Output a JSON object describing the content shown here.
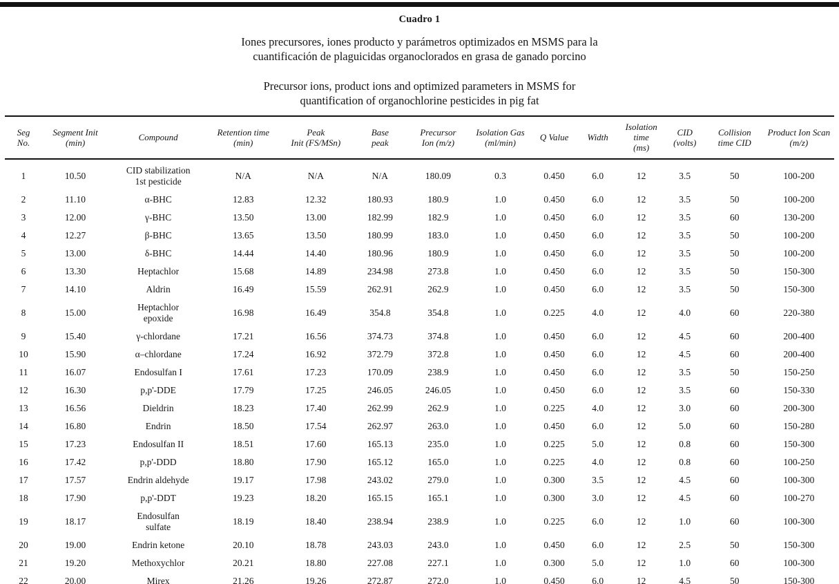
{
  "title": {
    "label": "Cuadro 1",
    "subtitle_es": "Iones precursores, iones producto y parámetros optimizados en MSMS para la\ncuantificación de plaguicidas organoclorados en grasa de ganado porcino",
    "subtitle_en": "Precursor ions, product ions and optimized parameters in MSMS for\nquantification of organochlorine pesticides in pig fat"
  },
  "chart_data": {
    "type": "table",
    "columns": [
      "Seg\nNo.",
      "Segment Init\n(min)",
      "Compound",
      "Retention time\n(min)",
      "Peak\nInit (FS/MSn)",
      "Base\npeak",
      "Precursor\nIon (m/z)",
      "Isolation Gas\n(ml/min)",
      "Q Value",
      "Width",
      "Isolation\ntime\n(ms)",
      "CID\n(volts)",
      "Collision\ntime  CID",
      "Product Ion Scan\n(m/z)"
    ],
    "rows": [
      [
        "1",
        "10.50",
        "CID stabilization\n1st pesticide",
        "N/A",
        "N/A",
        "N/A",
        "180.09",
        "0.3",
        "0.450",
        "6.0",
        "12",
        "3.5",
        "50",
        "100-200"
      ],
      [
        "2",
        "11.10",
        "α-BHC",
        "12.83",
        "12.32",
        "180.93",
        "180.9",
        "1.0",
        "0.450",
        "6.0",
        "12",
        "3.5",
        "50",
        "100-200"
      ],
      [
        "3",
        "12.00",
        "γ-BHC",
        "13.50",
        "13.00",
        "182.99",
        "182.9",
        "1.0",
        "0.450",
        "6.0",
        "12",
        "3.5",
        "60",
        "130-200"
      ],
      [
        "4",
        "12.27",
        "β-BHC",
        "13.65",
        "13.50",
        "180.99",
        "183.0",
        "1.0",
        "0.450",
        "6.0",
        "12",
        "3.5",
        "50",
        "100-200"
      ],
      [
        "5",
        "13.00",
        "δ-BHC",
        "14.44",
        "14.40",
        "180.96",
        "180.9",
        "1.0",
        "0.450",
        "6.0",
        "12",
        "3.5",
        "50",
        "100-200"
      ],
      [
        "6",
        "13.30",
        "Heptachlor",
        "15.68",
        "14.89",
        "234.98",
        "273.8",
        "1.0",
        "0.450",
        "6.0",
        "12",
        "3.5",
        "50",
        "150-300"
      ],
      [
        "7",
        "14.10",
        "Aldrin",
        "16.49",
        "15.59",
        "262.91",
        "262.9",
        "1.0",
        "0.450",
        "6.0",
        "12",
        "3.5",
        "50",
        "150-300"
      ],
      [
        "8",
        "15.00",
        "Heptachlor\nepoxide",
        "16.98",
        "16.49",
        "354.8",
        "354.8",
        "1.0",
        "0.225",
        "4.0",
        "12",
        "4.0",
        "60",
        "220-380"
      ],
      [
        "9",
        "15.40",
        "γ-chlordane",
        "17.21",
        "16.56",
        "374.73",
        "374.8",
        "1.0",
        "0.450",
        "6.0",
        "12",
        "4.5",
        "60",
        "200-400"
      ],
      [
        "10",
        "15.90",
        "α–chlordane",
        "17.24",
        "16.92",
        "372.79",
        "372.8",
        "1.0",
        "0.450",
        "6.0",
        "12",
        "4.5",
        "60",
        "200-400"
      ],
      [
        "11",
        "16.07",
        "Endosulfan I",
        "17.61",
        "17.23",
        "170.09",
        "238.9",
        "1.0",
        "0.450",
        "6.0",
        "12",
        "3.5",
        "50",
        "150-250"
      ],
      [
        "12",
        "16.30",
        "p,p'-DDE",
        "17.79",
        "17.25",
        "246.05",
        "246.05",
        "1.0",
        "0.450",
        "6.0",
        "12",
        "3.5",
        "60",
        "150-330"
      ],
      [
        "13",
        "16.56",
        "Dieldrin",
        "18.23",
        "17.40",
        "262.99",
        "262.9",
        "1.0",
        "0.225",
        "4.0",
        "12",
        "3.0",
        "60",
        "200-300"
      ],
      [
        "14",
        "16.80",
        "Endrin",
        "18.50",
        "17.54",
        "262.97",
        "263.0",
        "1.0",
        "0.450",
        "6.0",
        "12",
        "5.0",
        "60",
        "150-280"
      ],
      [
        "15",
        "17.23",
        "Endosulfan II",
        "18.51",
        "17.60",
        "165.13",
        "235.0",
        "1.0",
        "0.225",
        "5.0",
        "12",
        "0.8",
        "60",
        "150-300"
      ],
      [
        "16",
        "17.42",
        "p,p'-DDD",
        "18.80",
        "17.90",
        "165.12",
        "165.0",
        "1.0",
        "0.225",
        "4.0",
        "12",
        "0.8",
        "60",
        "100-250"
      ],
      [
        "17",
        "17.57",
        "Endrin aldehyde",
        "19.17",
        "17.98",
        "243.02",
        "279.0",
        "1.0",
        "0.300",
        "3.5",
        "12",
        "4.5",
        "60",
        "100-300"
      ],
      [
        "18",
        "17.90",
        "p,p'-DDT",
        "19.23",
        "18.20",
        "165.15",
        "165.1",
        "1.0",
        "0.300",
        "3.0",
        "12",
        "4.5",
        "60",
        "100-270"
      ],
      [
        "19",
        "18.17",
        "Endosulfan\nsulfate",
        "18.19",
        "18.40",
        "238.94",
        "238.9",
        "1.0",
        "0.225",
        "6.0",
        "12",
        "1.0",
        "60",
        "100-300"
      ],
      [
        "20",
        "19.00",
        "Endrin ketone",
        "20.10",
        "18.78",
        "243.03",
        "243.0",
        "1.0",
        "0.450",
        "6.0",
        "12",
        "2.5",
        "50",
        "150-300"
      ],
      [
        "21",
        "19.20",
        "Methoxychlor",
        "20.21",
        "18.80",
        "227.08",
        "227.1",
        "1.0",
        "0.300",
        "5.0",
        "12",
        "1.0",
        "60",
        "100-300"
      ],
      [
        "22",
        "20.00",
        "Mirex",
        "21.26",
        "19.26",
        "272.87",
        "272.0",
        "1.0",
        "0.450",
        "6.0",
        "12",
        "4.5",
        "50",
        "150-300"
      ]
    ]
  }
}
